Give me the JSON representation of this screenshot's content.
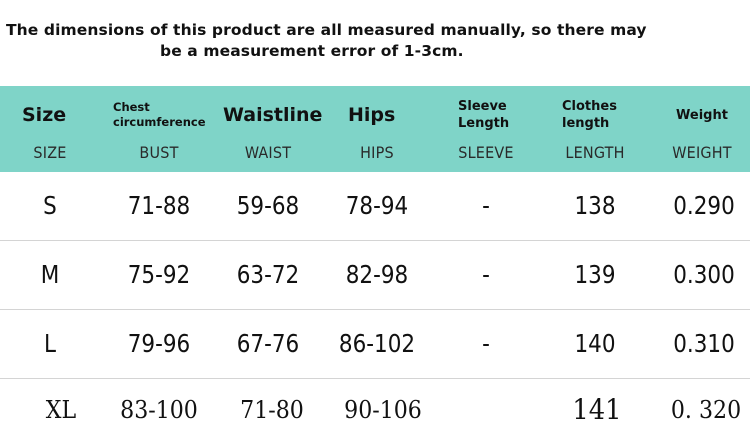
{
  "note": {
    "line1": "The dimensions of this product are all measured manually, so there may",
    "line2": "be a measurement error of 1-3cm."
  },
  "colors": {
    "header_band": "#7fd4c8",
    "row_divider": "#d4d4d4"
  },
  "table": {
    "columns": [
      {
        "label": "Size",
        "code": "SIZE"
      },
      {
        "label": "Chest circumference",
        "code": "BUST"
      },
      {
        "label": "Waistline",
        "code": "WAIST"
      },
      {
        "label": "Hips",
        "code": "HIPS"
      },
      {
        "label": "Sleeve Length",
        "code": "SLEEVE"
      },
      {
        "label": "Clothes length",
        "code": "LENGTH"
      },
      {
        "label": "Weight",
        "code": "WEIGHT"
      }
    ],
    "rows": [
      [
        "S",
        "71-88",
        "59-68",
        "78-94",
        "-",
        "138",
        "0.290"
      ],
      [
        "M",
        "75-92",
        "63-72",
        "82-98",
        "-",
        "139",
        "0.300"
      ],
      [
        "L",
        "79-96",
        "67-76",
        "86-102",
        "-",
        "140",
        "0.310"
      ],
      [
        "XL",
        "83-100",
        "71-80",
        "90-106",
        "",
        "141",
        "0. 320"
      ]
    ]
  }
}
